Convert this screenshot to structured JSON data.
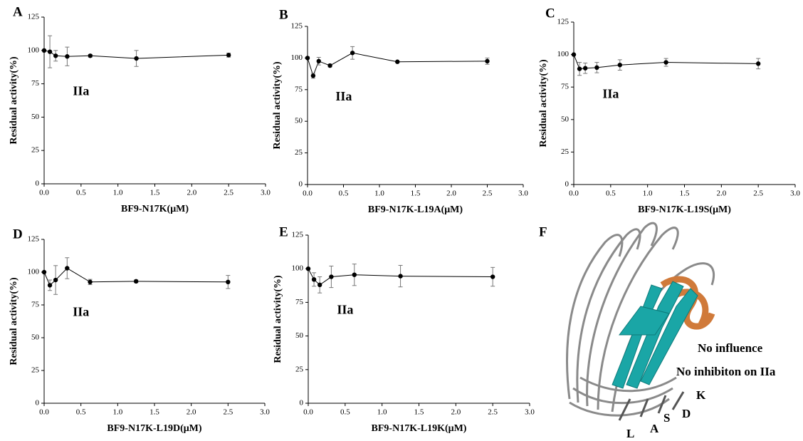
{
  "chart_data": [
    {
      "type": "line",
      "panel_label": "A",
      "x_label": "BF9-N17K(μM)",
      "y_label": "Residual activity(%)",
      "annotation": "IIa",
      "x": [
        0,
        0.078,
        0.156,
        0.3125,
        0.625,
        1.25,
        2.5
      ],
      "series": [
        {
          "color": "#000000",
          "values": [
            100,
            99,
            96,
            95.5,
            96,
            94,
            96.5
          ],
          "errors": [
            0,
            12,
            4,
            7,
            1,
            6,
            1.5
          ]
        }
      ],
      "xlim": [
        0,
        3
      ],
      "xticks": [
        {
          "value": 0,
          "label": "0.0"
        },
        0.5,
        {
          "value": 1,
          "label": "1.0"
        },
        1.5,
        {
          "value": 2,
          "label": "2.0"
        },
        2.5,
        {
          "value": 3,
          "label": "3.0"
        }
      ],
      "ylim": [
        0,
        125
      ],
      "yticks": [
        0,
        25,
        50,
        75,
        100,
        125
      ]
    },
    {
      "type": "line",
      "panel_label": "B",
      "x_label": "BF9-N17K-L19A(μM)",
      "y_label": "Residual activity(%)",
      "annotation": "IIa",
      "x": [
        0,
        0.078,
        0.156,
        0.3125,
        0.625,
        1.25,
        2.5
      ],
      "series": [
        {
          "color": "#000000",
          "values": [
            100,
            86,
            97.5,
            94,
            104,
            97,
            97.5
          ],
          "errors": [
            0,
            2,
            3,
            1,
            5,
            0.5,
            2.5
          ]
        }
      ],
      "xlim": [
        0,
        3
      ],
      "xticks": [
        {
          "value": 0,
          "label": "0.0"
        },
        0.5,
        {
          "value": 1,
          "label": "1.0"
        },
        1.5,
        {
          "value": 2,
          "label": "2.0"
        },
        2.5,
        {
          "value": 3,
          "label": "3.0"
        }
      ],
      "ylim": [
        0,
        125
      ],
      "yticks": [
        0,
        25,
        50,
        75,
        100,
        125
      ]
    },
    {
      "type": "line",
      "panel_label": "C",
      "x_label": "BF9-N17K-L19S(μM)",
      "y_label": "Residual activity(%)",
      "annotation": "IIa",
      "x": [
        0,
        0.078,
        0.156,
        0.3125,
        0.625,
        1.25,
        2.5
      ],
      "series": [
        {
          "color": "#000000",
          "values": [
            100,
            89,
            89.5,
            90,
            92,
            94,
            93
          ],
          "errors": [
            0,
            5,
            4,
            4,
            4,
            3,
            4
          ]
        }
      ],
      "xlim": [
        0,
        3
      ],
      "xticks": [
        {
          "value": 0,
          "label": "0.0"
        },
        0.5,
        {
          "value": 1,
          "label": "1.0"
        },
        1.5,
        {
          "value": 2,
          "label": "2.0"
        },
        2.5,
        {
          "value": 3,
          "label": "3.0"
        }
      ],
      "ylim": [
        0,
        125
      ],
      "yticks": [
        0,
        25,
        50,
        75,
        100,
        125
      ]
    },
    {
      "type": "line",
      "panel_label": "D",
      "x_label": "BF9-N17K-L19D(μM)",
      "y_label": "Residual activity(%)",
      "annotation": "IIa",
      "x": [
        0,
        0.078,
        0.156,
        0.3125,
        0.625,
        1.25,
        2.5
      ],
      "series": [
        {
          "color": "#000000",
          "values": [
            100,
            90,
            94,
            103,
            92.5,
            93,
            92.5
          ],
          "errors": [
            0,
            4,
            11,
            8,
            2,
            1,
            5
          ]
        }
      ],
      "xlim": [
        0,
        3
      ],
      "xticks": [
        {
          "value": 0,
          "label": "0.0"
        },
        0.5,
        {
          "value": 1,
          "label": "1.0"
        },
        1.5,
        {
          "value": 2,
          "label": "2.0"
        },
        2.5,
        {
          "value": 3,
          "label": "3.0"
        }
      ],
      "ylim": [
        0,
        125
      ],
      "yticks": [
        0,
        25,
        50,
        75,
        100,
        125
      ]
    },
    {
      "type": "line",
      "panel_label": "E",
      "x_label": "BF9-N17K-L19K(μM)",
      "y_label": "Residual activity(%)",
      "annotation": "IIa",
      "x": [
        0,
        0.078,
        0.156,
        0.3125,
        0.625,
        1.25,
        2.5
      ],
      "series": [
        {
          "color": "#000000",
          "values": [
            100,
            92,
            88,
            94,
            95.5,
            94.5,
            94
          ],
          "errors": [
            0,
            5,
            6,
            8,
            8,
            8,
            7
          ]
        }
      ],
      "xlim": [
        0,
        3
      ],
      "xticks": [
        {
          "value": 0,
          "label": "0.0"
        },
        0.5,
        {
          "value": 1,
          "label": "1.0"
        },
        1.5,
        {
          "value": 2,
          "label": "2.0"
        },
        2.5,
        {
          "value": 3,
          "label": "3.0"
        }
      ],
      "ylim": [
        0,
        125
      ],
      "yticks": [
        0,
        25,
        50,
        75,
        100,
        125
      ]
    }
  ],
  "image_panel": {
    "panel_label": "F",
    "annotations": [
      "No influence",
      "No inhibiton on IIa"
    ],
    "residues": [
      "K",
      "D",
      "S",
      "A",
      "L"
    ]
  }
}
